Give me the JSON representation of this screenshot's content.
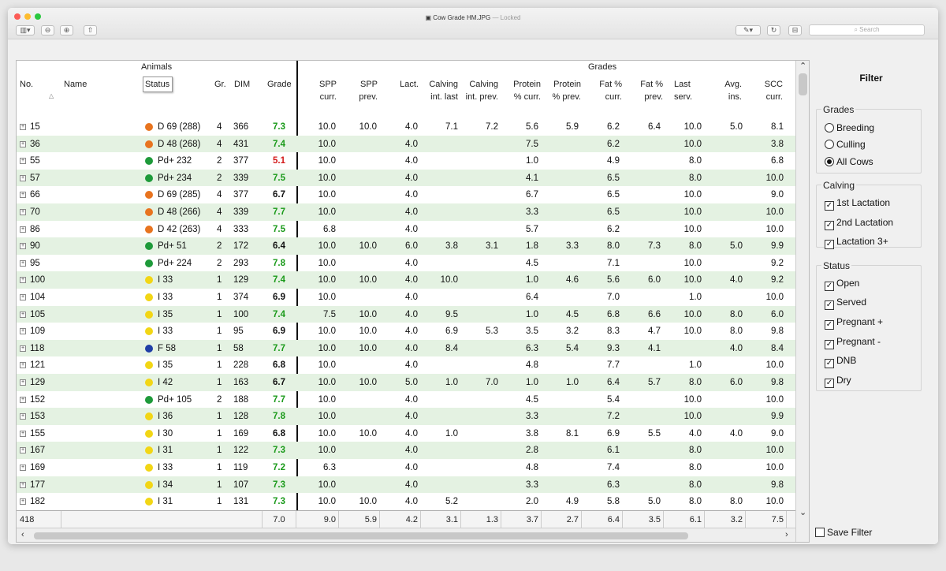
{
  "window": {
    "title": "Cow Grade HM.JPG",
    "separator": "—",
    "state": "Locked",
    "search_placeholder": "Search",
    "toolbar": {
      "sidebar_icon": "sidebar-toggle-icon",
      "zoom_out_icon": "zoom-out-icon",
      "zoom_in_icon": "zoom-in-icon",
      "share_icon": "share-icon",
      "markup_icon": "pen-icon",
      "rotate_icon": "rotate-icon",
      "toolbox_icon": "toolbox-icon"
    }
  },
  "table": {
    "group_animals": "Animals",
    "group_grades": "Grades",
    "headers": {
      "no": "No.",
      "name": "Name",
      "status": "Status",
      "gr": "Gr.",
      "dim": "DIM",
      "grade": "Grade",
      "spp_curr": "SPP curr.",
      "spp_prev": "SPP prev.",
      "lact": "Lact.",
      "calv_last": "Calving int. last",
      "calv_prev": "Calving int. prev.",
      "prot_curr": "Protein % curr.",
      "prot_prev": "Protein % prev.",
      "fat_curr": "Fat % curr.",
      "fat_prev": "Fat % prev.",
      "last_serv": "Last serv.",
      "avg_ins": "Avg. ins.",
      "scc_curr": "SCC curr."
    },
    "status_colors": {
      "orange": "#e8741f",
      "green": "#1e9a3a",
      "yellow": "#f2d615",
      "blue": "#1f3ea6"
    },
    "grade_colors": {
      "green": "#1a9a1a",
      "red": "#d41a1a",
      "black": "#111111"
    },
    "rows": [
      {
        "no": "15",
        "dot": "orange",
        "status": "D 69 (288)",
        "gr": "4",
        "dim": "366",
        "grade": "7.3",
        "gc": "green",
        "spp_curr": "10.0",
        "spp_prev": "10.0",
        "lact": "4.0",
        "calv_last": "7.1",
        "calv_prev": "7.2",
        "prot_curr": "5.6",
        "prot_prev": "5.9",
        "fat_curr": "6.2",
        "fat_prev": "6.4",
        "last_serv": "10.0",
        "avg_ins": "5.0",
        "scc_curr": "8.1"
      },
      {
        "no": "36",
        "dot": "orange",
        "status": "D 48 (268)",
        "gr": "4",
        "dim": "431",
        "grade": "7.4",
        "gc": "green",
        "spp_curr": "10.0",
        "spp_prev": "",
        "lact": "4.0",
        "calv_last": "",
        "calv_prev": "",
        "prot_curr": "7.5",
        "prot_prev": "",
        "fat_curr": "6.2",
        "fat_prev": "",
        "last_serv": "10.0",
        "avg_ins": "",
        "scc_curr": "3.8"
      },
      {
        "no": "55",
        "dot": "green",
        "status": "Pd+ 232",
        "gr": "2",
        "dim": "377",
        "grade": "5.1",
        "gc": "red",
        "spp_curr": "10.0",
        "spp_prev": "",
        "lact": "4.0",
        "calv_last": "",
        "calv_prev": "",
        "prot_curr": "1.0",
        "prot_prev": "",
        "fat_curr": "4.9",
        "fat_prev": "",
        "last_serv": "8.0",
        "avg_ins": "",
        "scc_curr": "6.8"
      },
      {
        "no": "57",
        "dot": "green",
        "status": "Pd+ 234",
        "gr": "2",
        "dim": "339",
        "grade": "7.5",
        "gc": "green",
        "spp_curr": "10.0",
        "spp_prev": "",
        "lact": "4.0",
        "calv_last": "",
        "calv_prev": "",
        "prot_curr": "4.1",
        "prot_prev": "",
        "fat_curr": "6.5",
        "fat_prev": "",
        "last_serv": "8.0",
        "avg_ins": "",
        "scc_curr": "10.0"
      },
      {
        "no": "66",
        "dot": "orange",
        "status": "D 69 (285)",
        "gr": "4",
        "dim": "377",
        "grade": "6.7",
        "gc": "black",
        "spp_curr": "10.0",
        "spp_prev": "",
        "lact": "4.0",
        "calv_last": "",
        "calv_prev": "",
        "prot_curr": "6.7",
        "prot_prev": "",
        "fat_curr": "6.5",
        "fat_prev": "",
        "last_serv": "10.0",
        "avg_ins": "",
        "scc_curr": "9.0"
      },
      {
        "no": "70",
        "dot": "orange",
        "status": "D 48 (266)",
        "gr": "4",
        "dim": "339",
        "grade": "7.7",
        "gc": "green",
        "spp_curr": "10.0",
        "spp_prev": "",
        "lact": "4.0",
        "calv_last": "",
        "calv_prev": "",
        "prot_curr": "3.3",
        "prot_prev": "",
        "fat_curr": "6.5",
        "fat_prev": "",
        "last_serv": "10.0",
        "avg_ins": "",
        "scc_curr": "10.0"
      },
      {
        "no": "86",
        "dot": "orange",
        "status": "D 42 (263)",
        "gr": "4",
        "dim": "333",
        "grade": "7.5",
        "gc": "green",
        "spp_curr": "6.8",
        "spp_prev": "",
        "lact": "4.0",
        "calv_last": "",
        "calv_prev": "",
        "prot_curr": "5.7",
        "prot_prev": "",
        "fat_curr": "6.2",
        "fat_prev": "",
        "last_serv": "10.0",
        "avg_ins": "",
        "scc_curr": "10.0"
      },
      {
        "no": "90",
        "dot": "green",
        "status": "Pd+ 51",
        "gr": "2",
        "dim": "172",
        "grade": "6.4",
        "gc": "black",
        "spp_curr": "10.0",
        "spp_prev": "10.0",
        "lact": "6.0",
        "calv_last": "3.8",
        "calv_prev": "3.1",
        "prot_curr": "1.8",
        "prot_prev": "3.3",
        "fat_curr": "8.0",
        "fat_prev": "7.3",
        "last_serv": "8.0",
        "avg_ins": "5.0",
        "scc_curr": "9.9"
      },
      {
        "no": "95",
        "dot": "green",
        "status": "Pd+ 224",
        "gr": "2",
        "dim": "293",
        "grade": "7.8",
        "gc": "green",
        "spp_curr": "10.0",
        "spp_prev": "",
        "lact": "4.0",
        "calv_last": "",
        "calv_prev": "",
        "prot_curr": "4.5",
        "prot_prev": "",
        "fat_curr": "7.1",
        "fat_prev": "",
        "last_serv": "10.0",
        "avg_ins": "",
        "scc_curr": "9.2"
      },
      {
        "no": "100",
        "dot": "yellow",
        "status": "I 33",
        "gr": "1",
        "dim": "129",
        "grade": "7.4",
        "gc": "green",
        "spp_curr": "10.0",
        "spp_prev": "10.0",
        "lact": "4.0",
        "calv_last": "10.0",
        "calv_prev": "",
        "prot_curr": "1.0",
        "prot_prev": "4.6",
        "fat_curr": "5.6",
        "fat_prev": "6.0",
        "last_serv": "10.0",
        "avg_ins": "4.0",
        "scc_curr": "9.2"
      },
      {
        "no": "104",
        "dot": "yellow",
        "status": "I 33",
        "gr": "1",
        "dim": "374",
        "grade": "6.9",
        "gc": "black",
        "spp_curr": "10.0",
        "spp_prev": "",
        "lact": "4.0",
        "calv_last": "",
        "calv_prev": "",
        "prot_curr": "6.4",
        "prot_prev": "",
        "fat_curr": "7.0",
        "fat_prev": "",
        "last_serv": "1.0",
        "avg_ins": "",
        "scc_curr": "10.0"
      },
      {
        "no": "105",
        "dot": "yellow",
        "status": "I 35",
        "gr": "1",
        "dim": "100",
        "grade": "7.4",
        "gc": "green",
        "spp_curr": "7.5",
        "spp_prev": "10.0",
        "lact": "4.0",
        "calv_last": "9.5",
        "calv_prev": "",
        "prot_curr": "1.0",
        "prot_prev": "4.5",
        "fat_curr": "6.8",
        "fat_prev": "6.6",
        "last_serv": "10.0",
        "avg_ins": "8.0",
        "scc_curr": "6.0"
      },
      {
        "no": "109",
        "dot": "yellow",
        "status": "I 33",
        "gr": "1",
        "dim": "95",
        "grade": "6.9",
        "gc": "black",
        "spp_curr": "10.0",
        "spp_prev": "10.0",
        "lact": "4.0",
        "calv_last": "6.9",
        "calv_prev": "5.3",
        "prot_curr": "3.5",
        "prot_prev": "3.2",
        "fat_curr": "8.3",
        "fat_prev": "4.7",
        "last_serv": "10.0",
        "avg_ins": "8.0",
        "scc_curr": "9.8"
      },
      {
        "no": "118",
        "dot": "blue",
        "status": "F 58",
        "gr": "1",
        "dim": "58",
        "grade": "7.7",
        "gc": "green",
        "spp_curr": "10.0",
        "spp_prev": "10.0",
        "lact": "4.0",
        "calv_last": "8.4",
        "calv_prev": "",
        "prot_curr": "6.3",
        "prot_prev": "5.4",
        "fat_curr": "9.3",
        "fat_prev": "4.1",
        "last_serv": "",
        "avg_ins": "4.0",
        "scc_curr": "8.4"
      },
      {
        "no": "121",
        "dot": "yellow",
        "status": "I 35",
        "gr": "1",
        "dim": "228",
        "grade": "6.8",
        "gc": "black",
        "spp_curr": "10.0",
        "spp_prev": "",
        "lact": "4.0",
        "calv_last": "",
        "calv_prev": "",
        "prot_curr": "4.8",
        "prot_prev": "",
        "fat_curr": "7.7",
        "fat_prev": "",
        "last_serv": "1.0",
        "avg_ins": "",
        "scc_curr": "10.0"
      },
      {
        "no": "129",
        "dot": "yellow",
        "status": "I 42",
        "gr": "1",
        "dim": "163",
        "grade": "6.7",
        "gc": "black",
        "spp_curr": "10.0",
        "spp_prev": "10.0",
        "lact": "5.0",
        "calv_last": "1.0",
        "calv_prev": "7.0",
        "prot_curr": "1.0",
        "prot_prev": "1.0",
        "fat_curr": "6.4",
        "fat_prev": "5.7",
        "last_serv": "8.0",
        "avg_ins": "6.0",
        "scc_curr": "9.8"
      },
      {
        "no": "152",
        "dot": "green",
        "status": "Pd+ 105",
        "gr": "2",
        "dim": "188",
        "grade": "7.7",
        "gc": "green",
        "spp_curr": "10.0",
        "spp_prev": "",
        "lact": "4.0",
        "calv_last": "",
        "calv_prev": "",
        "prot_curr": "4.5",
        "prot_prev": "",
        "fat_curr": "5.4",
        "fat_prev": "",
        "last_serv": "10.0",
        "avg_ins": "",
        "scc_curr": "10.0"
      },
      {
        "no": "153",
        "dot": "yellow",
        "status": "I 36",
        "gr": "1",
        "dim": "128",
        "grade": "7.8",
        "gc": "green",
        "spp_curr": "10.0",
        "spp_prev": "",
        "lact": "4.0",
        "calv_last": "",
        "calv_prev": "",
        "prot_curr": "3.3",
        "prot_prev": "",
        "fat_curr": "7.2",
        "fat_prev": "",
        "last_serv": "10.0",
        "avg_ins": "",
        "scc_curr": "9.9"
      },
      {
        "no": "155",
        "dot": "yellow",
        "status": "I 30",
        "gr": "1",
        "dim": "169",
        "grade": "6.8",
        "gc": "black",
        "spp_curr": "10.0",
        "spp_prev": "10.0",
        "lact": "4.0",
        "calv_last": "1.0",
        "calv_prev": "",
        "prot_curr": "3.8",
        "prot_prev": "8.1",
        "fat_curr": "6.9",
        "fat_prev": "5.5",
        "last_serv": "4.0",
        "avg_ins": "4.0",
        "scc_curr": "9.0"
      },
      {
        "no": "167",
        "dot": "yellow",
        "status": "I 31",
        "gr": "1",
        "dim": "122",
        "grade": "7.3",
        "gc": "green",
        "spp_curr": "10.0",
        "spp_prev": "",
        "lact": "4.0",
        "calv_last": "",
        "calv_prev": "",
        "prot_curr": "2.8",
        "prot_prev": "",
        "fat_curr": "6.1",
        "fat_prev": "",
        "last_serv": "8.0",
        "avg_ins": "",
        "scc_curr": "10.0"
      },
      {
        "no": "169",
        "dot": "yellow",
        "status": "I 33",
        "gr": "1",
        "dim": "119",
        "grade": "7.2",
        "gc": "green",
        "spp_curr": "6.3",
        "spp_prev": "",
        "lact": "4.0",
        "calv_last": "",
        "calv_prev": "",
        "prot_curr": "4.8",
        "prot_prev": "",
        "fat_curr": "7.4",
        "fat_prev": "",
        "last_serv": "8.0",
        "avg_ins": "",
        "scc_curr": "10.0"
      },
      {
        "no": "177",
        "dot": "yellow",
        "status": "I 34",
        "gr": "1",
        "dim": "107",
        "grade": "7.3",
        "gc": "green",
        "spp_curr": "10.0",
        "spp_prev": "",
        "lact": "4.0",
        "calv_last": "",
        "calv_prev": "",
        "prot_curr": "3.3",
        "prot_prev": "",
        "fat_curr": "6.3",
        "fat_prev": "",
        "last_serv": "8.0",
        "avg_ins": "",
        "scc_curr": "9.8"
      },
      {
        "no": "182",
        "dot": "yellow",
        "status": "I 31",
        "gr": "1",
        "dim": "131",
        "grade": "7.3",
        "gc": "green",
        "spp_curr": "10.0",
        "spp_prev": "10.0",
        "lact": "4.0",
        "calv_last": "5.2",
        "calv_prev": "",
        "prot_curr": "2.0",
        "prot_prev": "4.9",
        "fat_curr": "5.8",
        "fat_prev": "5.0",
        "last_serv": "8.0",
        "avg_ins": "8.0",
        "scc_curr": "10.0"
      }
    ],
    "footer": {
      "count": "418",
      "grade": "7.0",
      "spp_curr": "9.0",
      "spp_prev": "5.9",
      "lact": "4.2",
      "calv_last": "3.1",
      "calv_prev": "1.3",
      "prot_curr": "3.7",
      "prot_prev": "2.7",
      "fat_curr": "6.4",
      "fat_prev": "3.5",
      "last_serv": "6.1",
      "avg_ins": "3.2",
      "scc_curr": "7.5"
    }
  },
  "filter": {
    "title": "Filter",
    "grades": {
      "title": "Grades",
      "options": [
        {
          "label": "Breeding",
          "selected": false
        },
        {
          "label": "Culling",
          "selected": false
        },
        {
          "label": "All Cows",
          "selected": true
        }
      ]
    },
    "calving": {
      "title": "Calving",
      "options": [
        {
          "label": "1st Lactation",
          "checked": true
        },
        {
          "label": "2nd Lactation",
          "checked": true
        },
        {
          "label": "Lactation 3+",
          "checked": true
        }
      ]
    },
    "status": {
      "title": "Status",
      "options": [
        {
          "label": "Open",
          "checked": true
        },
        {
          "label": "Served",
          "checked": true
        },
        {
          "label": "Pregnant +",
          "checked": true
        },
        {
          "label": "Pregnant -",
          "checked": true
        },
        {
          "label": "DNB",
          "checked": true
        },
        {
          "label": "Dry",
          "checked": true
        }
      ]
    },
    "save_filter": {
      "label": "Save Filter",
      "checked": false
    }
  }
}
